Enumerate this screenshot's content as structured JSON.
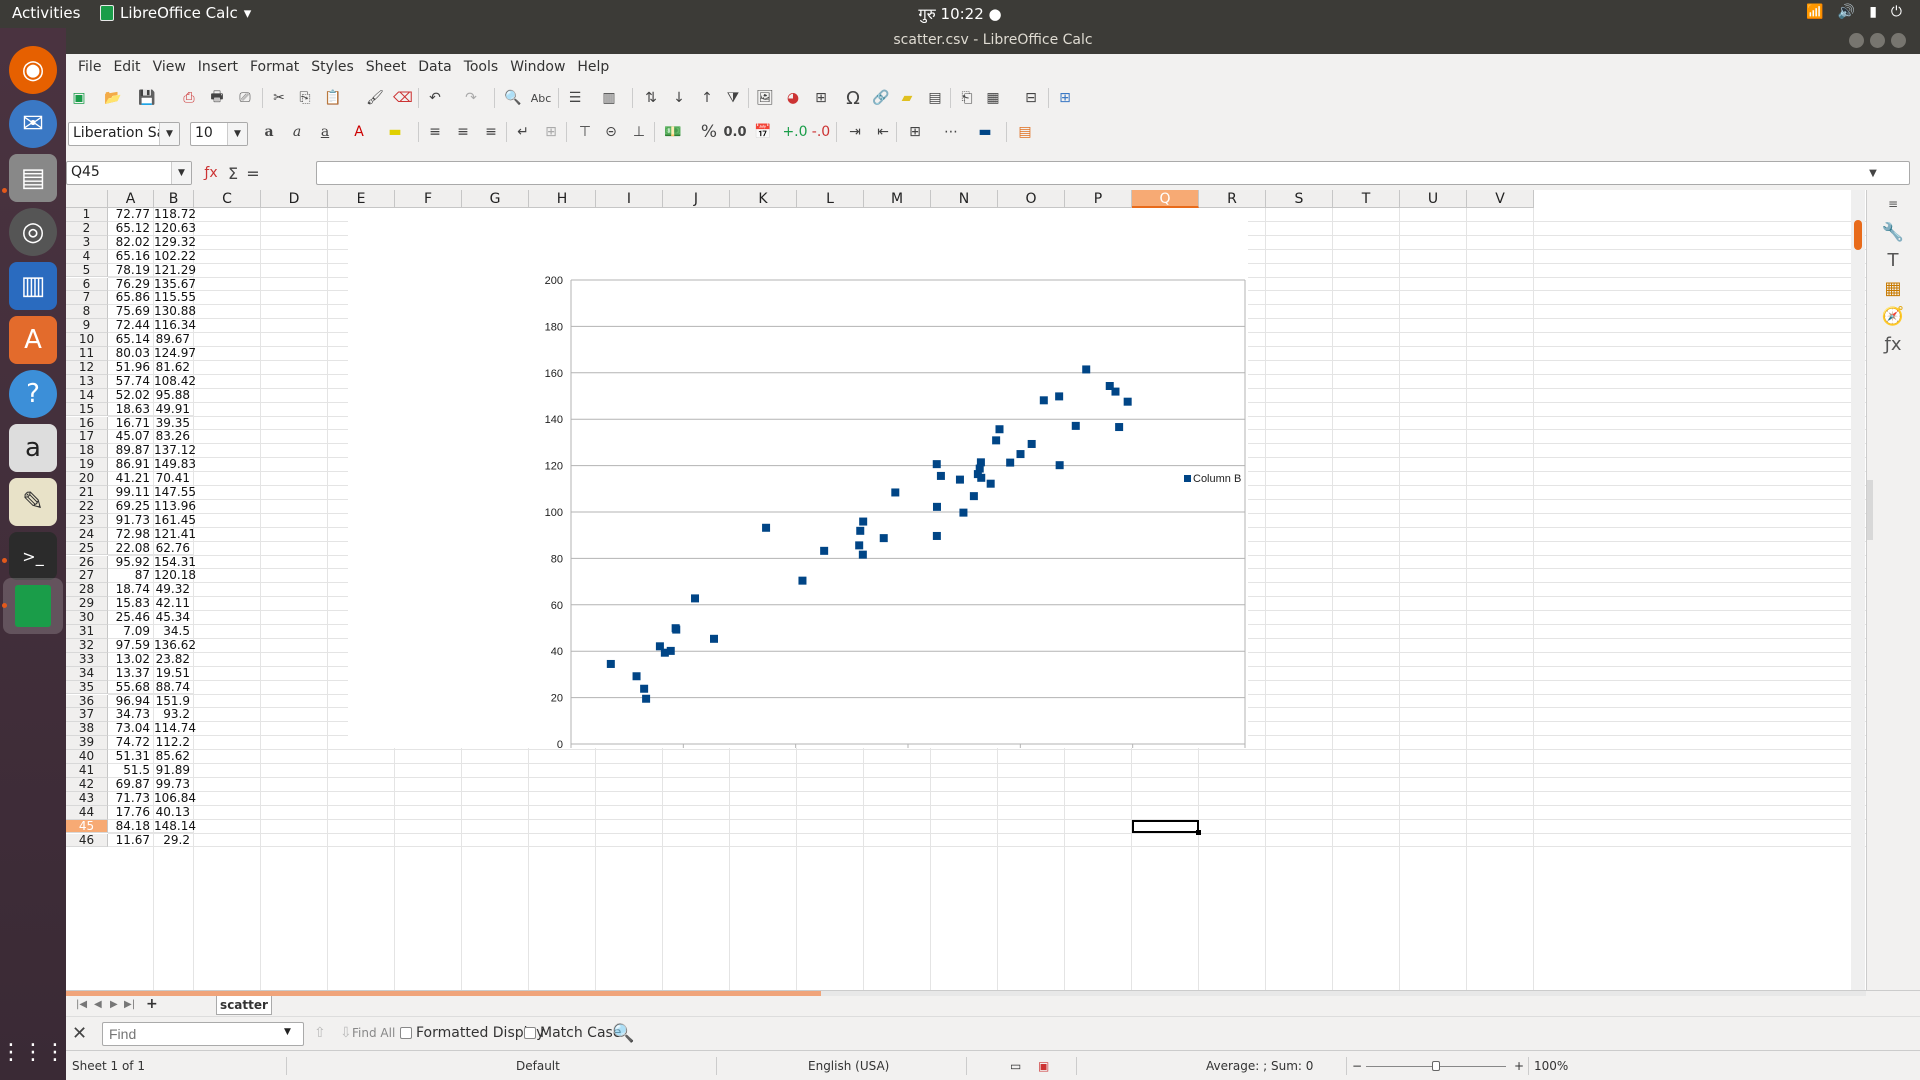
{
  "top_panel": {
    "activities": "Activities",
    "app_name": "LibreOffice Calc",
    "clock": "गुरु 10:22 ●"
  },
  "window": {
    "title": "scatter.csv - LibreOffice Calc"
  },
  "menu": [
    "File",
    "Edit",
    "View",
    "Insert",
    "Format",
    "Styles",
    "Sheet",
    "Data",
    "Tools",
    "Window",
    "Help"
  ],
  "format_bar": {
    "font_name": "Liberation Sans",
    "font_size": "10"
  },
  "formula_bar": {
    "name_box": "Q45",
    "content": ""
  },
  "columns": [
    "A",
    "B",
    "C",
    "D",
    "E",
    "F",
    "G",
    "H",
    "I",
    "J",
    "K",
    "L",
    "M",
    "N",
    "O",
    "P",
    "Q",
    "R",
    "S",
    "T",
    "U",
    "V"
  ],
  "selected_column": "Q",
  "selected_row": "45",
  "rows": [
    [
      "1",
      "72.77",
      "118.72"
    ],
    [
      "2",
      "65.12",
      "120.63"
    ],
    [
      "3",
      "82.02",
      "129.32"
    ],
    [
      "4",
      "65.16",
      "102.22"
    ],
    [
      "5",
      "78.19",
      "121.29"
    ],
    [
      "6",
      "76.29",
      "135.67"
    ],
    [
      "7",
      "65.86",
      "115.55"
    ],
    [
      "8",
      "75.69",
      "130.88"
    ],
    [
      "9",
      "72.44",
      "116.34"
    ],
    [
      "10",
      "65.14",
      "89.67"
    ],
    [
      "11",
      "80.03",
      "124.97"
    ],
    [
      "12",
      "51.96",
      "81.62"
    ],
    [
      "13",
      "57.74",
      "108.42"
    ],
    [
      "14",
      "52.02",
      "95.88"
    ],
    [
      "15",
      "18.63",
      "49.91"
    ],
    [
      "16",
      "16.71",
      "39.35"
    ],
    [
      "17",
      "45.07",
      "83.26"
    ],
    [
      "18",
      "89.87",
      "137.12"
    ],
    [
      "19",
      "86.91",
      "149.83"
    ],
    [
      "20",
      "41.21",
      "70.41"
    ],
    [
      "21",
      "99.11",
      "147.55"
    ],
    [
      "22",
      "69.25",
      "113.96"
    ],
    [
      "23",
      "91.73",
      "161.45"
    ],
    [
      "24",
      "72.98",
      "121.41"
    ],
    [
      "25",
      "22.08",
      "62.76"
    ],
    [
      "26",
      "95.92",
      "154.31"
    ],
    [
      "27",
      "87",
      "120.18"
    ],
    [
      "28",
      "18.74",
      "49.32"
    ],
    [
      "29",
      "15.83",
      "42.11"
    ],
    [
      "30",
      "25.46",
      "45.34"
    ],
    [
      "31",
      "7.09",
      "34.5"
    ],
    [
      "32",
      "97.59",
      "136.62"
    ],
    [
      "33",
      "13.02",
      "23.82"
    ],
    [
      "34",
      "13.37",
      "19.51"
    ],
    [
      "35",
      "55.68",
      "88.74"
    ],
    [
      "36",
      "96.94",
      "151.9"
    ],
    [
      "37",
      "34.73",
      "93.2"
    ],
    [
      "38",
      "73.04",
      "114.74"
    ],
    [
      "39",
      "74.72",
      "112.2"
    ],
    [
      "40",
      "51.31",
      "85.62"
    ],
    [
      "41",
      "51.5",
      "91.89"
    ],
    [
      "42",
      "69.87",
      "99.73"
    ],
    [
      "43",
      "71.73",
      "106.84"
    ],
    [
      "44",
      "17.76",
      "40.13"
    ],
    [
      "45",
      "84.18",
      "148.14"
    ],
    [
      "46",
      "11.67",
      "29.2"
    ]
  ],
  "chart_data": {
    "type": "scatter",
    "title": "",
    "xlabel": "",
    "ylabel": "",
    "xlim": [
      0,
      120
    ],
    "ylim": [
      0,
      200
    ],
    "xticks": [
      "0",
      "20",
      "40",
      "60",
      "80",
      "100",
      "120"
    ],
    "yticks": [
      "0",
      "20",
      "40",
      "60",
      "80",
      "100",
      "120",
      "140",
      "160",
      "180",
      "200"
    ],
    "grid": "horizontal",
    "legend": "right",
    "series": [
      {
        "name": "Column B",
        "color": "#004586",
        "x": [
          72.77,
          65.12,
          82.02,
          65.16,
          78.19,
          76.29,
          65.86,
          75.69,
          72.44,
          65.14,
          80.03,
          51.96,
          57.74,
          52.02,
          18.63,
          16.71,
          45.07,
          89.87,
          86.91,
          41.21,
          99.11,
          69.25,
          91.73,
          72.98,
          22.08,
          95.92,
          87,
          18.74,
          15.83,
          25.46,
          7.09,
          97.59,
          13.02,
          13.37,
          55.68,
          96.94,
          34.73,
          73.04,
          74.72,
          51.31,
          51.5,
          69.87,
          71.73,
          17.76,
          84.18,
          11.67
        ],
        "y": [
          118.72,
          120.63,
          129.32,
          102.22,
          121.29,
          135.67,
          115.55,
          130.88,
          116.34,
          89.67,
          124.97,
          81.62,
          108.42,
          95.88,
          49.91,
          39.35,
          83.26,
          137.12,
          149.83,
          70.41,
          147.55,
          113.96,
          161.45,
          121.41,
          62.76,
          154.31,
          120.18,
          49.32,
          42.11,
          45.34,
          34.5,
          136.62,
          23.82,
          19.51,
          88.74,
          151.9,
          93.2,
          114.74,
          112.2,
          85.62,
          91.89,
          99.73,
          106.84,
          40.13,
          148.14,
          29.2
        ]
      }
    ]
  },
  "sheet_tabs": {
    "active": "scatter"
  },
  "find_bar": {
    "placeholder": "Find",
    "find_all": "Find All",
    "formatted_display": "Formatted Display",
    "match_case": "Match Case"
  },
  "status_bar": {
    "sheet": "Sheet 1 of 1",
    "style": "Default",
    "language": "English (USA)",
    "summary": "Average: ; Sum: 0",
    "zoom": "100%"
  }
}
